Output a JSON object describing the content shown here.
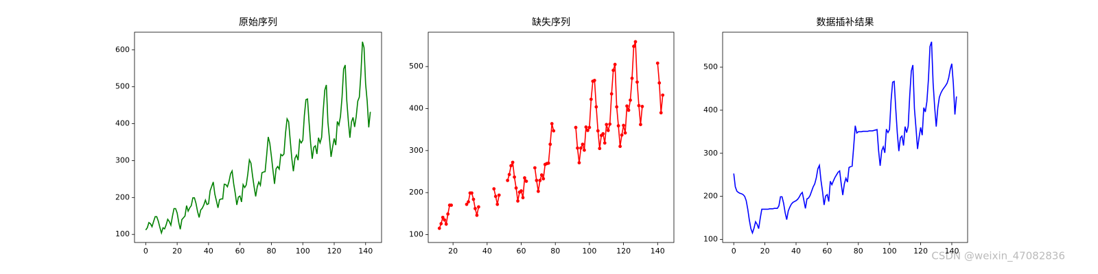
{
  "watermark": "CSDN @weixin_47082836",
  "chart_data": [
    {
      "type": "line",
      "title": "原始序列",
      "color": "green",
      "markers": false,
      "x": [
        0,
        1,
        2,
        3,
        4,
        5,
        6,
        7,
        8,
        9,
        10,
        11,
        12,
        13,
        14,
        15,
        16,
        17,
        18,
        19,
        20,
        21,
        22,
        23,
        24,
        25,
        26,
        27,
        28,
        29,
        30,
        31,
        32,
        33,
        34,
        35,
        36,
        37,
        38,
        39,
        40,
        41,
        42,
        43,
        44,
        45,
        46,
        47,
        48,
        49,
        50,
        51,
        52,
        53,
        54,
        55,
        56,
        57,
        58,
        59,
        60,
        61,
        62,
        63,
        64,
        65,
        66,
        67,
        68,
        69,
        70,
        71,
        72,
        73,
        74,
        75,
        76,
        77,
        78,
        79,
        80,
        81,
        82,
        83,
        84,
        85,
        86,
        87,
        88,
        89,
        90,
        91,
        92,
        93,
        94,
        95,
        96,
        97,
        98,
        99,
        100,
        101,
        102,
        103,
        104,
        105,
        106,
        107,
        108,
        109,
        110,
        111,
        112,
        113,
        114,
        115,
        116,
        117,
        118,
        119,
        120,
        121,
        122,
        123,
        124,
        125,
        126,
        127,
        128,
        129,
        130,
        131,
        132,
        133,
        134,
        135,
        136,
        137,
        138,
        139,
        140,
        141,
        142,
        143
      ],
      "values": [
        112,
        118,
        132,
        129,
        121,
        135,
        148,
        148,
        136,
        119,
        104,
        118,
        115,
        126,
        141,
        135,
        125,
        149,
        170,
        170,
        158,
        133,
        114,
        140,
        145,
        150,
        178,
        163,
        172,
        178,
        199,
        199,
        184,
        162,
        146,
        166,
        171,
        180,
        193,
        181,
        183,
        218,
        230,
        242,
        209,
        191,
        172,
        194,
        196,
        196,
        236,
        235,
        229,
        243,
        264,
        272,
        237,
        211,
        180,
        201,
        204,
        188,
        235,
        227,
        234,
        264,
        302,
        293,
        259,
        229,
        203,
        229,
        242,
        233,
        267,
        269,
        270,
        315,
        364,
        347,
        312,
        274,
        237,
        278,
        284,
        277,
        317,
        313,
        318,
        374,
        413,
        405,
        355,
        306,
        271,
        306,
        315,
        301,
        356,
        348,
        355,
        422,
        465,
        467,
        404,
        347,
        305,
        336,
        340,
        318,
        362,
        348,
        363,
        435,
        491,
        505,
        404,
        359,
        310,
        337,
        360,
        342,
        406,
        396,
        420,
        472,
        548,
        559,
        463,
        407,
        362,
        405,
        417,
        391,
        419,
        461,
        472,
        535,
        622,
        606,
        508,
        461,
        390,
        432
      ],
      "xlim": [
        -7.15,
        150.15
      ],
      "ylim": [
        78.1,
        647.9
      ],
      "xticks": [
        0,
        20,
        40,
        60,
        80,
        100,
        120,
        140
      ],
      "yticks": [
        100,
        200,
        300,
        400,
        500,
        600
      ]
    },
    {
      "type": "line",
      "title": "缺失序列",
      "color": "red",
      "markers": true,
      "x": [
        0,
        1,
        2,
        3,
        4,
        5,
        6,
        7,
        8,
        9,
        10,
        11,
        12,
        13,
        14,
        15,
        16,
        17,
        18,
        19,
        20,
        21,
        22,
        23,
        24,
        25,
        26,
        27,
        28,
        29,
        30,
        31,
        32,
        33,
        34,
        35,
        36,
        37,
        38,
        39,
        40,
        41,
        42,
        43,
        44,
        45,
        46,
        47,
        48,
        49,
        50,
        51,
        52,
        53,
        54,
        55,
        56,
        57,
        58,
        59,
        60,
        61,
        62,
        63,
        64,
        65,
        66,
        67,
        68,
        69,
        70,
        71,
        72,
        73,
        74,
        75,
        76,
        77,
        78,
        79,
        80,
        81,
        82,
        83,
        84,
        85,
        86,
        87,
        88,
        89,
        90,
        91,
        92,
        93,
        94,
        95,
        96,
        97,
        98,
        99,
        100,
        101,
        102,
        103,
        104,
        105,
        106,
        107,
        108,
        109,
        110,
        111,
        112,
        113,
        114,
        115,
        116,
        117,
        118,
        119,
        120,
        121,
        122,
        123,
        124,
        125,
        126,
        127,
        128,
        129,
        130,
        131,
        132,
        133,
        134,
        135,
        136,
        137,
        138,
        139,
        140,
        141,
        142,
        143
      ],
      "values": [
        null,
        null,
        null,
        null,
        null,
        null,
        null,
        null,
        null,
        null,
        null,
        null,
        115,
        126,
        141,
        135,
        125,
        149,
        170,
        170,
        null,
        null,
        null,
        null,
        null,
        null,
        null,
        null,
        172,
        178,
        199,
        199,
        184,
        162,
        146,
        166,
        null,
        null,
        null,
        null,
        null,
        null,
        null,
        null,
        209,
        191,
        172,
        194,
        null,
        null,
        null,
        null,
        229,
        243,
        264,
        272,
        237,
        211,
        180,
        201,
        204,
        188,
        235,
        227,
        null,
        null,
        null,
        null,
        259,
        229,
        203,
        229,
        242,
        233,
        267,
        269,
        270,
        315,
        364,
        347,
        null,
        null,
        null,
        null,
        null,
        null,
        null,
        null,
        null,
        null,
        null,
        null,
        355,
        306,
        271,
        306,
        315,
        301,
        356,
        348,
        355,
        422,
        465,
        467,
        404,
        347,
        305,
        336,
        340,
        318,
        362,
        348,
        363,
        435,
        491,
        505,
        404,
        359,
        310,
        337,
        360,
        342,
        406,
        396,
        420,
        472,
        548,
        559,
        463,
        407,
        362,
        405,
        null,
        null,
        null,
        null,
        null,
        null,
        null,
        null,
        508,
        461,
        390,
        432
      ],
      "xlim": [
        5.45,
        149.55
      ],
      "ylim": [
        81.25,
        581.75
      ],
      "xticks": [
        20,
        40,
        60,
        80,
        100,
        120,
        140
      ],
      "yticks": [
        100,
        200,
        300,
        400,
        500
      ]
    },
    {
      "type": "line",
      "title": "数据插补结果",
      "color": "blue",
      "markers": false,
      "x": [
        0,
        1,
        2,
        3,
        4,
        5,
        6,
        7,
        8,
        9,
        10,
        11,
        12,
        13,
        14,
        15,
        16,
        17,
        18,
        19,
        20,
        21,
        22,
        23,
        24,
        25,
        26,
        27,
        28,
        29,
        30,
        31,
        32,
        33,
        34,
        35,
        36,
        37,
        38,
        39,
        40,
        41,
        42,
        43,
        44,
        45,
        46,
        47,
        48,
        49,
        50,
        51,
        52,
        53,
        54,
        55,
        56,
        57,
        58,
        59,
        60,
        61,
        62,
        63,
        64,
        65,
        66,
        67,
        68,
        69,
        70,
        71,
        72,
        73,
        74,
        75,
        76,
        77,
        78,
        79,
        80,
        81,
        82,
        83,
        84,
        85,
        86,
        87,
        88,
        89,
        90,
        91,
        92,
        93,
        94,
        95,
        96,
        97,
        98,
        99,
        100,
        101,
        102,
        103,
        104,
        105,
        106,
        107,
        108,
        109,
        110,
        111,
        112,
        113,
        114,
        115,
        116,
        117,
        118,
        119,
        120,
        121,
        122,
        123,
        124,
        125,
        126,
        127,
        128,
        129,
        130,
        131,
        132,
        133,
        134,
        135,
        136,
        137,
        138,
        139,
        140,
        141,
        142,
        143
      ],
      "values": [
        253,
        222,
        212,
        209,
        207,
        206,
        204,
        200,
        190,
        170,
        145,
        125,
        115,
        126,
        141,
        135,
        125,
        149,
        170,
        170,
        170,
        170,
        170,
        171,
        171,
        171,
        172,
        172,
        172,
        178,
        199,
        199,
        184,
        162,
        146,
        166,
        175,
        182,
        186,
        188,
        190,
        193,
        198,
        205,
        209,
        191,
        172,
        194,
        196,
        202,
        212,
        222,
        229,
        243,
        264,
        272,
        237,
        211,
        180,
        201,
        204,
        188,
        235,
        227,
        236,
        244,
        250,
        256,
        259,
        229,
        203,
        229,
        242,
        233,
        267,
        269,
        270,
        315,
        364,
        347,
        350,
        350,
        350,
        351,
        351,
        351,
        351,
        352,
        352,
        352,
        353,
        354,
        355,
        306,
        271,
        306,
        315,
        301,
        356,
        348,
        355,
        422,
        465,
        467,
        404,
        347,
        305,
        336,
        340,
        318,
        362,
        348,
        363,
        435,
        491,
        505,
        404,
        359,
        310,
        337,
        360,
        342,
        406,
        396,
        420,
        472,
        548,
        559,
        463,
        407,
        362,
        405,
        430,
        440,
        447,
        452,
        457,
        463,
        475,
        495,
        508,
        461,
        390,
        432
      ],
      "xlim": [
        -7.15,
        150.15
      ],
      "ylim": [
        92.8,
        581.2
      ],
      "xticks": [
        0,
        20,
        40,
        60,
        80,
        100,
        120,
        140
      ],
      "yticks": [
        100,
        200,
        300,
        400,
        500
      ]
    }
  ]
}
